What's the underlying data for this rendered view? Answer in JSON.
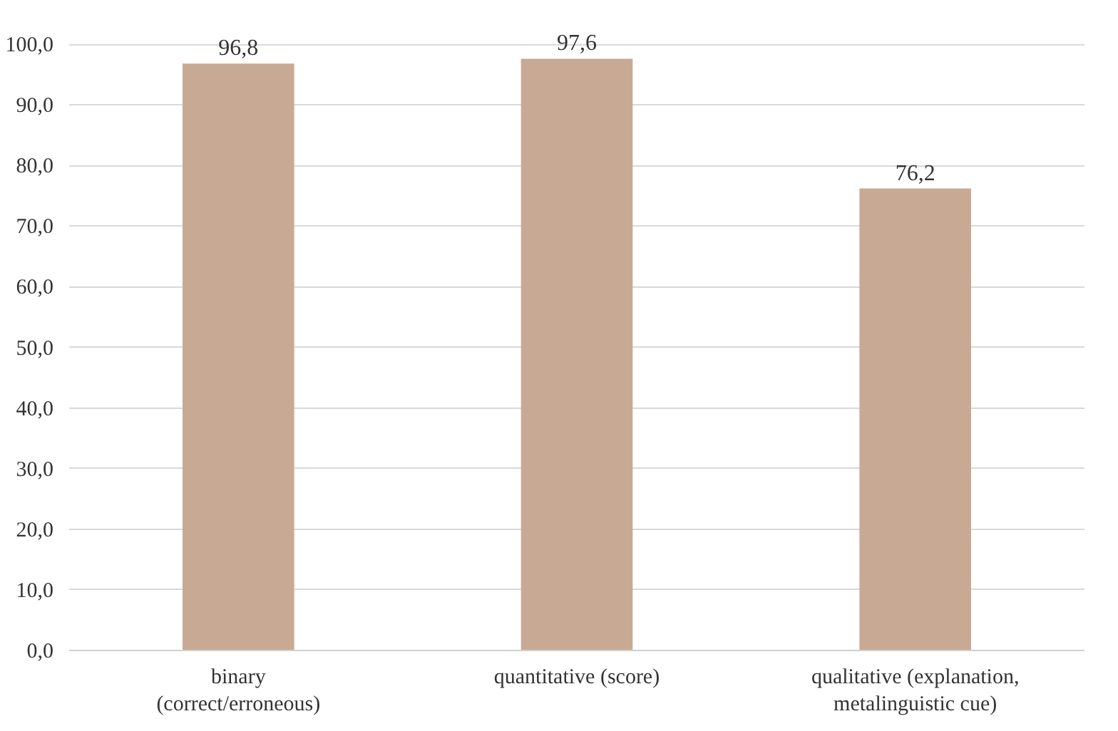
{
  "chart_data": {
    "type": "bar",
    "categories": [
      "binary\n(correct/erroneous)",
      "quantitative (score)",
      "qualitative (explanation,\nmetalinguistic cue)"
    ],
    "values": [
      96.8,
      97.6,
      76.2
    ],
    "value_labels": [
      "96,8",
      "97,6",
      "76,2"
    ],
    "color": "#c8aa94",
    "ylim": [
      0,
      100
    ],
    "yticks": [
      {
        "value": 0,
        "label": "0,0"
      },
      {
        "value": 10,
        "label": "10,0"
      },
      {
        "value": 20,
        "label": "20,0"
      },
      {
        "value": 30,
        "label": "30,0"
      },
      {
        "value": 40,
        "label": "40,0"
      },
      {
        "value": 50,
        "label": "50,0"
      },
      {
        "value": 60,
        "label": "60,0"
      },
      {
        "value": 70,
        "label": "70,0"
      },
      {
        "value": 80,
        "label": "80,0"
      },
      {
        "value": 90,
        "label": "90,0"
      },
      {
        "value": 100,
        "label": "100,0"
      }
    ],
    "grid": "y"
  }
}
